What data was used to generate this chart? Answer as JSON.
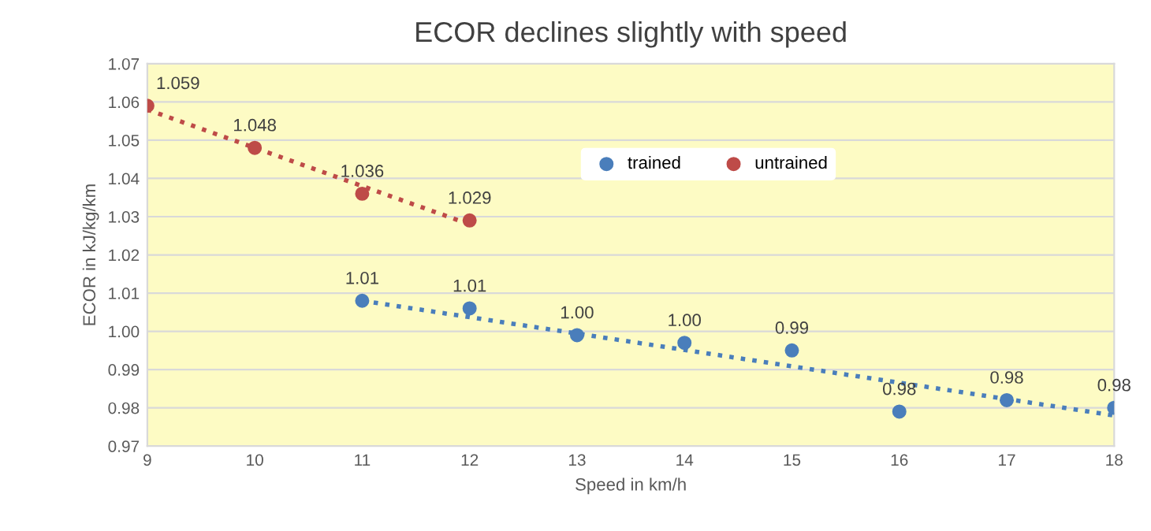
{
  "chart_data": {
    "type": "scatter",
    "title": "ECOR declines slightly with speed",
    "xlabel": "Speed in km/h",
    "ylabel": "ECOR in kJ/kg/km",
    "series": [
      {
        "name": "trained",
        "color": "#4a7ebb",
        "x": [
          11,
          12,
          13,
          14,
          15,
          16,
          17,
          18
        ],
        "values": [
          1.008,
          1.006,
          0.999,
          0.997,
          0.995,
          0.979,
          0.982,
          0.98
        ],
        "value_labels": [
          "1.01",
          "1.01",
          "1.00",
          "1.00",
          "0.99",
          "0.98",
          "0.98",
          "0.98"
        ]
      },
      {
        "name": "untrained",
        "color": "#be4b48",
        "x": [
          9,
          10,
          11,
          12
        ],
        "values": [
          1.059,
          1.048,
          1.036,
          1.029
        ],
        "value_labels": [
          "1.059",
          "1.048",
          "1.036",
          "1.029"
        ]
      },
      {
        "type": "line",
        "color": "#4a7ebb",
        "line_style": "dotted",
        "marker": "none",
        "x": [
          11,
          18
        ],
        "values": [
          1.008,
          0.978
        ]
      },
      {
        "type": "line",
        "color": "#be4b48",
        "line_style": "dotted",
        "marker": "none",
        "x": [
          9,
          12
        ],
        "values": [
          1.058,
          1.028
        ]
      }
    ],
    "xlim": [
      9,
      18
    ],
    "xticks": [
      9,
      10,
      11,
      12,
      13,
      14,
      15,
      16,
      17,
      18
    ],
    "ylim": [
      0.97,
      1.07
    ],
    "yticks": [
      {
        "value": 0.97,
        "label": "0.97"
      },
      {
        "value": 0.98,
        "label": "0.98"
      },
      {
        "value": 0.99,
        "label": "0.99"
      },
      {
        "value": 1.0,
        "label": "1.00"
      },
      {
        "value": 1.01,
        "label": "1.01"
      },
      {
        "value": 1.02,
        "label": "1.02"
      },
      {
        "value": 1.03,
        "label": "1.03"
      },
      {
        "value": 1.04,
        "label": "1.04"
      },
      {
        "value": 1.05,
        "label": "1.05"
      },
      {
        "value": 1.06,
        "label": "1.06"
      },
      {
        "value": 1.07,
        "label": "1.07"
      }
    ],
    "grid": "y",
    "legend": "top right",
    "marker": "circle"
  }
}
